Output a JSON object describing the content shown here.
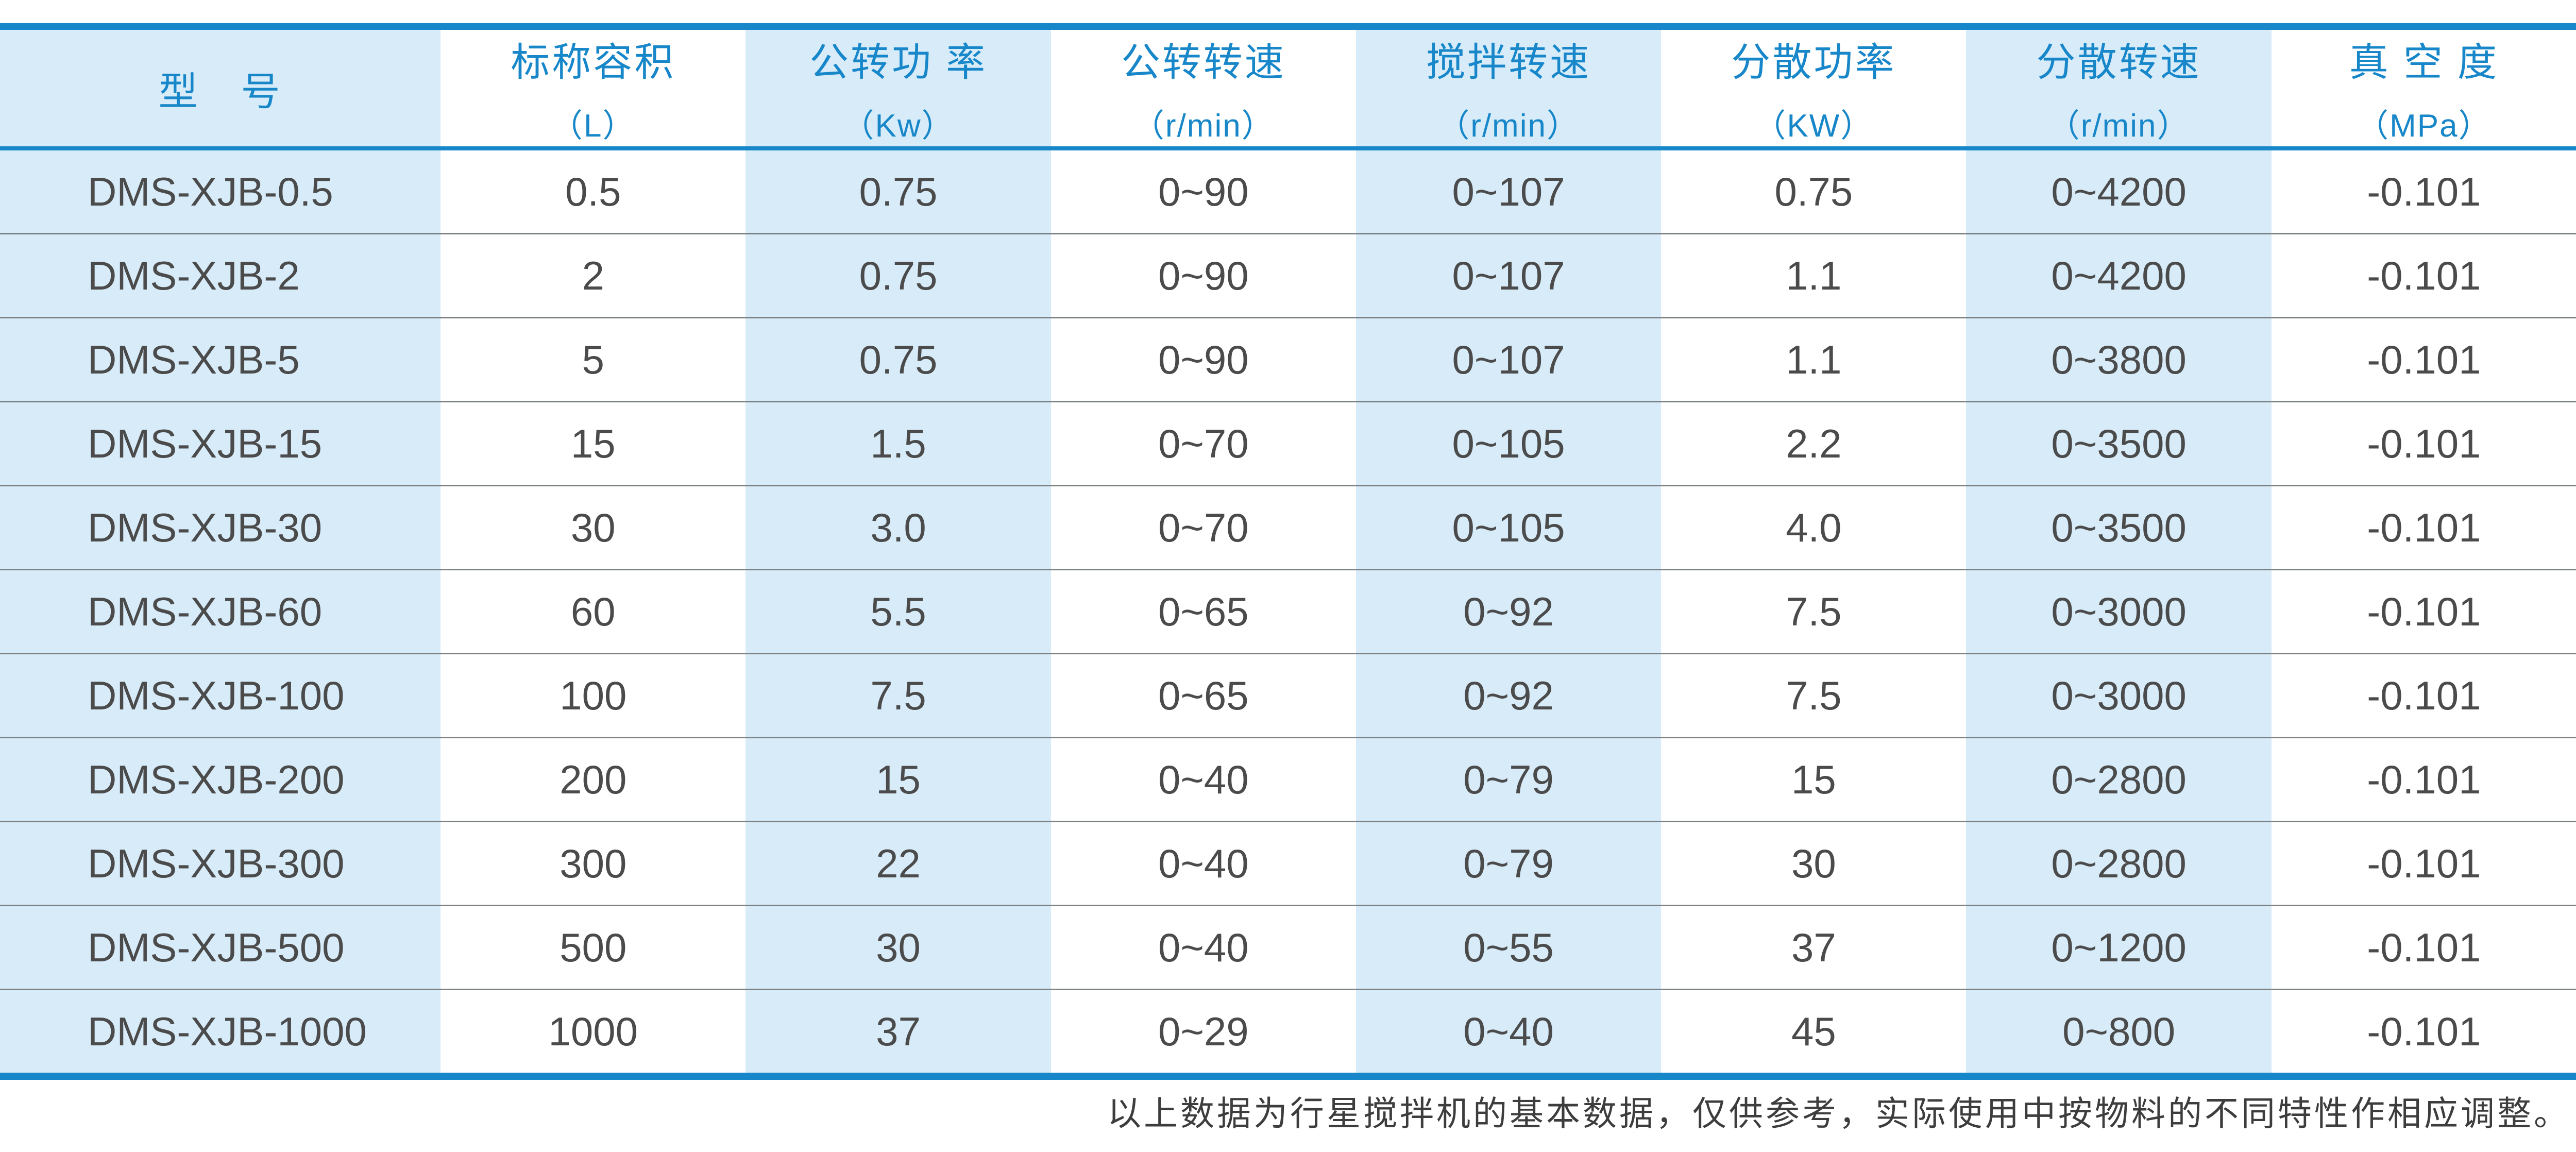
{
  "colors": {
    "accent_blue": "#1787c9",
    "light_blue": "#d7ebf9",
    "header_text": "#1787c9",
    "body_text": "#4b4b4b",
    "separator": "#7d8284",
    "footnote_text": "#3d3d3d"
  },
  "table": {
    "columns": [
      {
        "title": "型　号",
        "unit": ""
      },
      {
        "title": "标称容积",
        "unit": "（L）"
      },
      {
        "title": "公转功 率",
        "unit": "（Kw）"
      },
      {
        "title": "公转转速",
        "unit": "（r/min）"
      },
      {
        "title": "搅拌转速",
        "unit": "（r/min）"
      },
      {
        "title": "分散功率",
        "unit": "（KW）"
      },
      {
        "title": "分散转速",
        "unit": "（r/min）"
      },
      {
        "title": "真 空 度",
        "unit": "（MPa）"
      }
    ],
    "rows": [
      {
        "model": "DMS-XJB-0.5",
        "values": [
          "0.5",
          "0.75",
          "0~90",
          "0~107",
          "0.75",
          "0~4200",
          "-0.101"
        ]
      },
      {
        "model": "DMS-XJB-2",
        "values": [
          "2",
          "0.75",
          "0~90",
          "0~107",
          "1.1",
          "0~4200",
          "-0.101"
        ]
      },
      {
        "model": "DMS-XJB-5",
        "values": [
          "5",
          "0.75",
          "0~90",
          "0~107",
          "1.1",
          "0~3800",
          "-0.101"
        ]
      },
      {
        "model": "DMS-XJB-15",
        "values": [
          "15",
          "1.5",
          "0~70",
          "0~105",
          "2.2",
          "0~3500",
          "-0.101"
        ]
      },
      {
        "model": "DMS-XJB-30",
        "values": [
          "30",
          "3.0",
          "0~70",
          "0~105",
          "4.0",
          "0~3500",
          "-0.101"
        ]
      },
      {
        "model": "DMS-XJB-60",
        "values": [
          "60",
          "5.5",
          "0~65",
          "0~92",
          "7.5",
          "0~3000",
          "-0.101"
        ]
      },
      {
        "model": "DMS-XJB-100",
        "values": [
          "100",
          "7.5",
          "0~65",
          "0~92",
          "7.5",
          "0~3000",
          "-0.101"
        ]
      },
      {
        "model": "DMS-XJB-200",
        "values": [
          "200",
          "15",
          "0~40",
          "0~79",
          "15",
          "0~2800",
          "-0.101"
        ]
      },
      {
        "model": "DMS-XJB-300",
        "values": [
          "300",
          "22",
          "0~40",
          "0~79",
          "30",
          "0~2800",
          "-0.101"
        ]
      },
      {
        "model": "DMS-XJB-500",
        "values": [
          "500",
          "30",
          "0~40",
          "0~55",
          "37",
          "0~1200",
          "-0.101"
        ]
      },
      {
        "model": "DMS-XJB-1000",
        "values": [
          "1000",
          "37",
          "0~29",
          "0~40",
          "45",
          "0~800",
          "-0.101"
        ]
      }
    ]
  },
  "footnote": "以上数据为行星搅拌机的基本数据，仅供参考，实际使用中按物料的不同特性作相应调整。"
}
